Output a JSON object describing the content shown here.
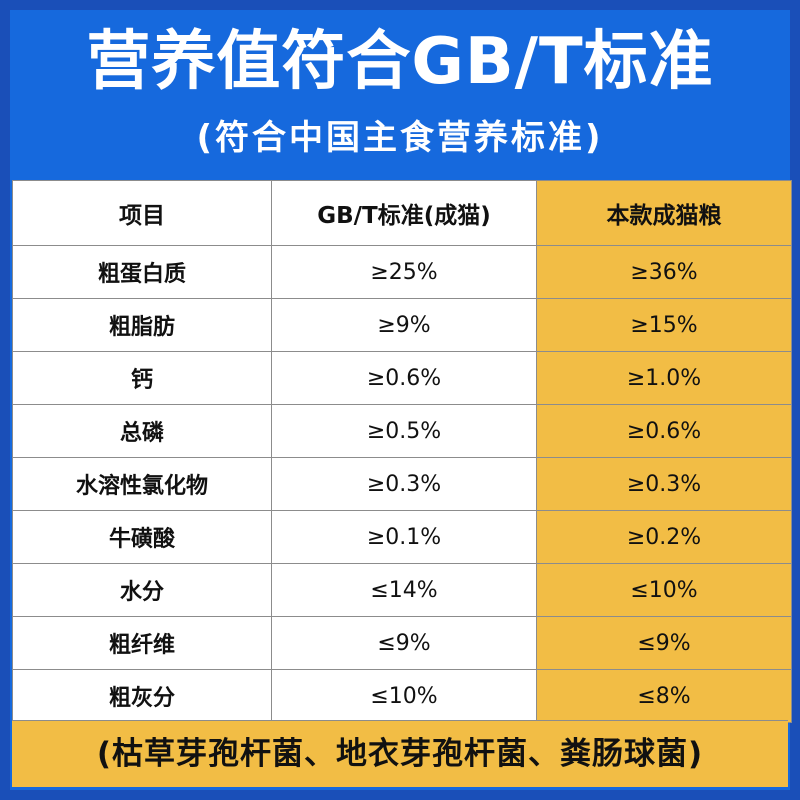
{
  "title": "营养值符合GB/T标准",
  "subtitle": "(符合中国主食营养标准)",
  "table": {
    "headers": [
      "项目",
      "GB/T标准(成猫)",
      "本款成猫粮"
    ],
    "rows": [
      {
        "item": "粗蛋白质",
        "standard": "≥25%",
        "product": "≥36%"
      },
      {
        "item": "粗脂肪",
        "standard": "≥9%",
        "product": "≥15%"
      },
      {
        "item": "钙",
        "standard": "≥0.6%",
        "product": "≥1.0%"
      },
      {
        "item": "总磷",
        "standard": "≥0.5%",
        "product": "≥0.6%"
      },
      {
        "item": "水溶性氯化物",
        "standard": "≥0.3%",
        "product": "≥0.3%"
      },
      {
        "item": "牛磺酸",
        "standard": "≥0.1%",
        "product": "≥0.2%"
      },
      {
        "item": "水分",
        "standard": "≤14%",
        "product": "≤10%"
      },
      {
        "item": "粗纤维",
        "standard": "≤9%",
        "product": "≤9%"
      },
      {
        "item": "粗灰分",
        "standard": "≤10%",
        "product": "≤8%"
      }
    ]
  },
  "footer": "(枯草芽孢杆菌、地衣芽孢杆菌、粪肠球菌)",
  "colors": {
    "background_blue": "#1669dd",
    "highlight_yellow": "#f2bd45",
    "text_white": "#ffffff"
  }
}
